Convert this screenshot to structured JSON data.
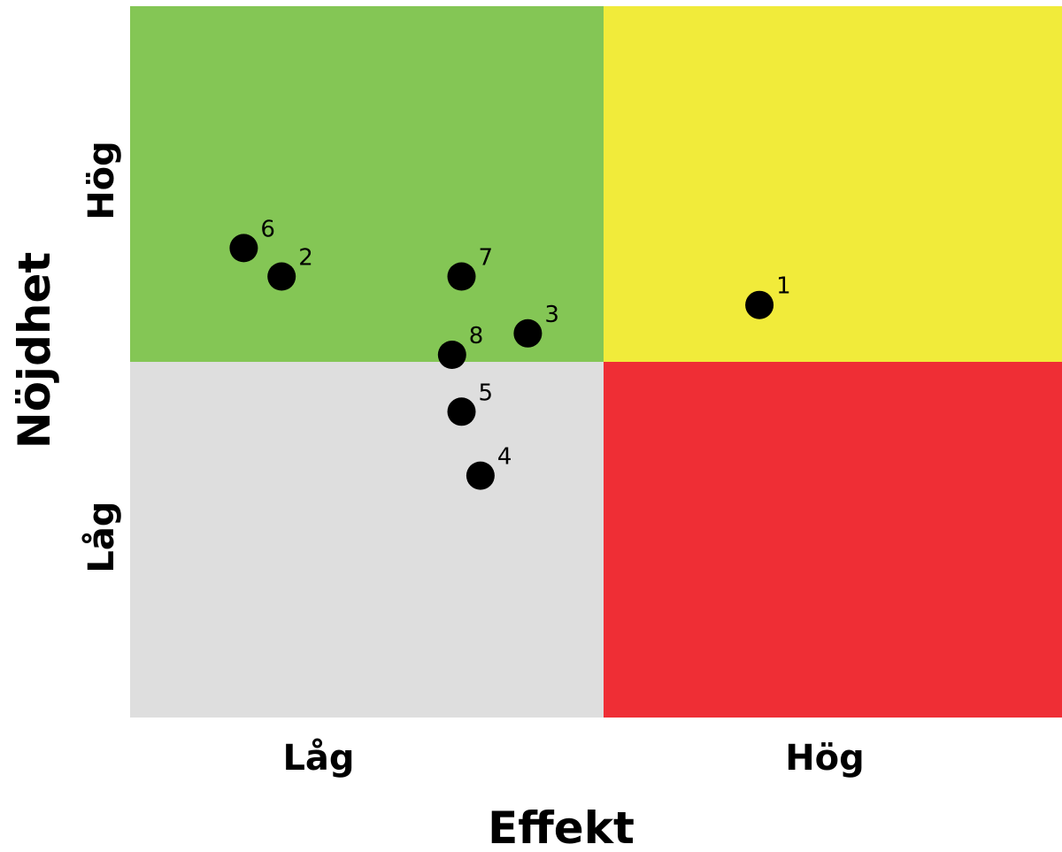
{
  "chart_data": {
    "type": "scatter",
    "title": "",
    "xlabel": "Effekt",
    "ylabel": "Nöjdhet",
    "x_ticks": [
      "Låg",
      "Hög"
    ],
    "y_ticks": [
      "Låg",
      "Hög"
    ],
    "xlim": [
      0,
      10
    ],
    "ylim": [
      0,
      10
    ],
    "grid": false,
    "quadrants": {
      "top_left": "#84c655",
      "top_right": "#f1eb3a",
      "bottom_left": "#dedede",
      "bottom_right": "#ef2e35"
    },
    "points": [
      {
        "label": "1",
        "x": 6.7,
        "y": 5.8
      },
      {
        "label": "2",
        "x": 1.6,
        "y": 6.2
      },
      {
        "label": "3",
        "x": 4.2,
        "y": 5.4
      },
      {
        "label": "4",
        "x": 3.7,
        "y": 3.4
      },
      {
        "label": "5",
        "x": 3.5,
        "y": 4.3
      },
      {
        "label": "6",
        "x": 1.2,
        "y": 6.6
      },
      {
        "label": "7",
        "x": 3.5,
        "y": 6.2
      },
      {
        "label": "8",
        "x": 3.4,
        "y": 5.1
      }
    ]
  }
}
